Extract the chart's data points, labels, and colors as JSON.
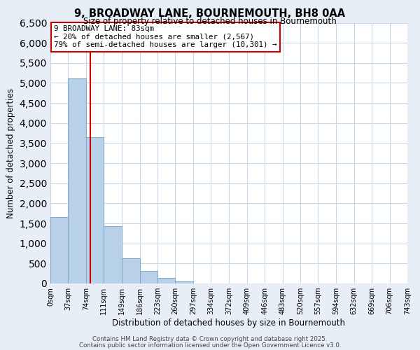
{
  "title": "9, BROADWAY LANE, BOURNEMOUTH, BH8 0AA",
  "subtitle": "Size of property relative to detached houses in Bournemouth",
  "xlabel": "Distribution of detached houses by size in Bournemouth",
  "ylabel": "Number of detached properties",
  "bar_edges": [
    0,
    37,
    74,
    111,
    149,
    186,
    223,
    260,
    297,
    334,
    372,
    409,
    446,
    483,
    520,
    557,
    594,
    632,
    669,
    706,
    743
  ],
  "bar_heights": [
    1650,
    5120,
    3650,
    1430,
    620,
    310,
    145,
    60,
    0,
    0,
    0,
    0,
    0,
    0,
    0,
    0,
    0,
    0,
    0,
    0
  ],
  "bar_color": "#b8d0e8",
  "bar_edge_color": "#7aaac8",
  "vline_x": 83,
  "vline_color": "#cc0000",
  "ylim": [
    0,
    6500
  ],
  "yticks": [
    0,
    500,
    1000,
    1500,
    2000,
    2500,
    3000,
    3500,
    4000,
    4500,
    5000,
    5500,
    6000,
    6500
  ],
  "annotation_title": "9 BROADWAY LANE: 83sqm",
  "annotation_line1": "← 20% of detached houses are smaller (2,567)",
  "annotation_line2": "79% of semi-detached houses are larger (10,301) →",
  "footer_line1": "Contains HM Land Registry data © Crown copyright and database right 2025.",
  "footer_line2": "Contains public sector information licensed under the Open Government Licence v3.0.",
  "bg_color": "#e8eef5",
  "plot_bg_color": "#ffffff",
  "grid_color": "#c8d8ea"
}
